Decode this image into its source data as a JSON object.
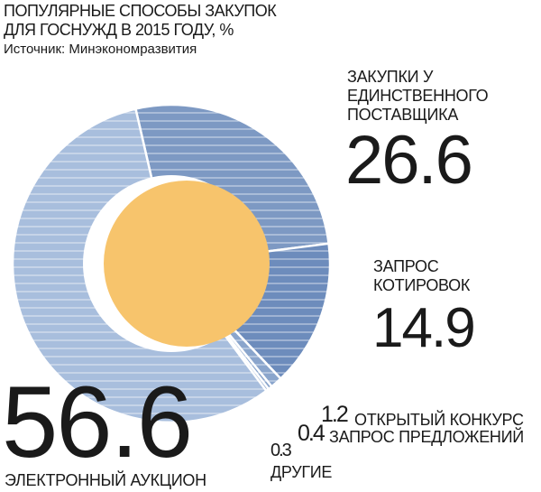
{
  "chart_data": {
    "type": "pie",
    "title": "ПОПУЛЯРНЫЕ СПОСОБЫ ЗАКУПОК ДЛЯ ГОСНУЖД В 2015 ГОДУ, %",
    "source": "Источник: Минэкономразвития",
    "categories": [
      "ЗАКУПКИ У ЕДИНСТВЕННОГО ПОСТАВЩИКА",
      "ЗАПРОС КОТИРОВОК",
      "ОТКРЫТЫЙ КОНКУРС",
      "ЗАПРОС ПРЕДЛОЖЕНИЙ",
      "ДРУГИЕ",
      "ЭЛЕКТРОННЫЙ АУКЦИОН"
    ],
    "values": [
      26.6,
      14.9,
      1.2,
      0.4,
      0.3,
      56.6
    ],
    "colors": [
      "#7d99c3",
      "#6d8cbc",
      "#8aa5cc",
      "#8aa5cc",
      "#8aa5cc",
      "#a8bedd"
    ],
    "center_color": "#f7c46c"
  }
}
